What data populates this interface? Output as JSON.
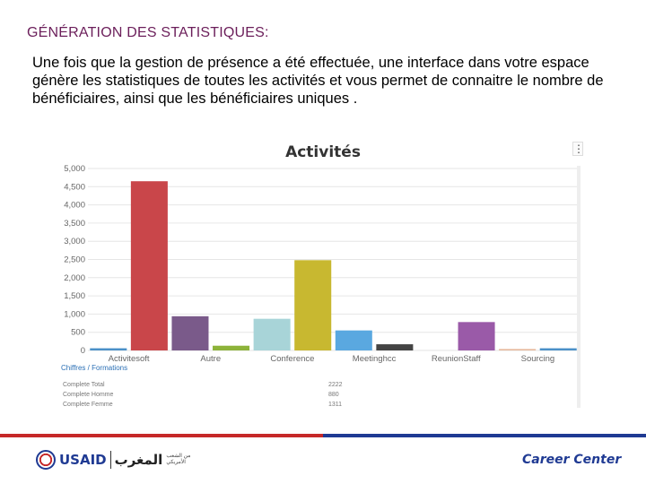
{
  "slide": {
    "title": "GÉNÉRATION DES STATISTIQUES:",
    "body": "Une fois que la gestion de présence a été effectuée, une interface dans votre espace génère les statistiques de toutes les activités et vous permet de connaitre le nombre de bénéficiaires,  ainsi que les bénéficiaires uniques ."
  },
  "chart_data": {
    "type": "bar",
    "title": "Activités",
    "ylim": [
      0,
      5000
    ],
    "yticks": [
      "0",
      "500",
      "1,000",
      "1,500",
      "2,000",
      "2,500",
      "3,000",
      "3,500",
      "4,000",
      "4,500",
      "5,000"
    ],
    "grid": true,
    "categories": [
      "Activitesoft",
      "",
      "Autre",
      "",
      "Conference",
      "",
      "Meetinghcc",
      "",
      "ReunionStaff",
      "",
      "Sourcing",
      ""
    ],
    "values": [
      60,
      4650,
      940,
      130,
      870,
      2480,
      550,
      170,
      10,
      780,
      40,
      60
    ],
    "colors": [
      "#4a90c8",
      "#c9464a",
      "#7a5a8a",
      "#8db33a",
      "#a8d4d8",
      "#c8b830",
      "#5aa8e0",
      "#444444",
      "#dddddd",
      "#9a5aa8",
      "#e6b89c",
      "#4a90c8"
    ]
  },
  "info": {
    "tab_label": "Chiffres / Formations",
    "rows": [
      {
        "label": "Complete Total",
        "value": "2222"
      },
      {
        "label": "Complete Homme",
        "value": "880"
      },
      {
        "label": "Complete Femme",
        "value": "1311"
      }
    ]
  },
  "footer": {
    "usaid": "USAID",
    "arabic": "المغرب",
    "arabic_sub": "من الشعب الأمريكي",
    "career": "Career Center"
  }
}
